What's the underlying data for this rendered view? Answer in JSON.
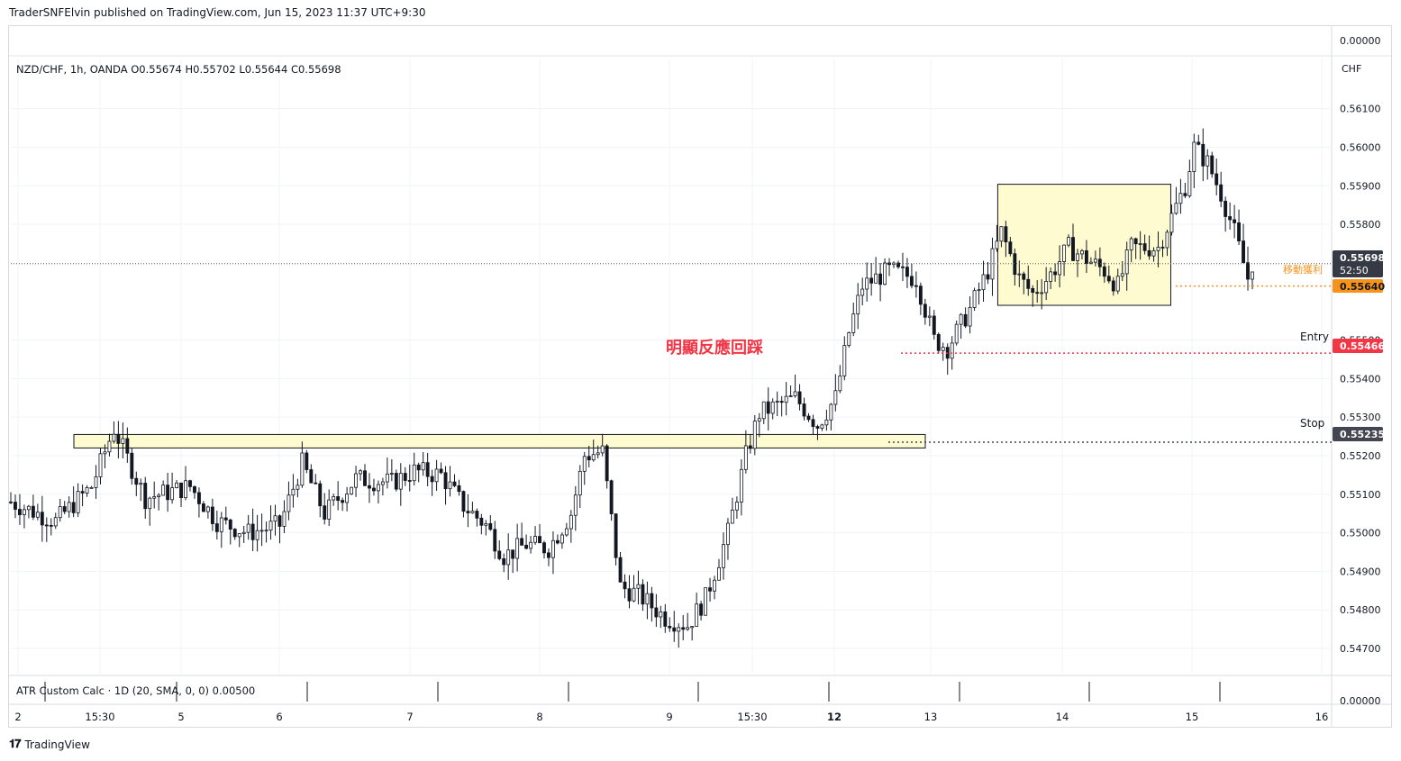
{
  "header": {
    "publisher": "TraderSNFElvin published on TradingView.com, Jun 15, 2023 11:37 UTC+9:30"
  },
  "footer": {
    "brand": "TradingView"
  },
  "chart_data": {
    "type": "candlestick",
    "symbol_line": "NZD/CHF, 1h, OANDA  O0.55674  H0.55702  L0.55644  C0.55698",
    "currency": "CHF",
    "indicator_label": "ATR Custom Calc · 1D (20, SMA, 0, 0)  0.00500",
    "indicator_axis": [
      "0.00000",
      "0.00000"
    ],
    "annotation": "明顯反應回踩",
    "ylim": [
      0.5463,
      0.5616
    ],
    "y_ticks": [
      "0.56100",
      "0.56000",
      "0.55900",
      "0.55800",
      "0.55500",
      "0.55400",
      "0.55300",
      "0.55200",
      "0.55100",
      "0.55000",
      "0.54900",
      "0.54800",
      "0.54700"
    ],
    "x_ticks": [
      "2",
      "15:30",
      "5",
      "6",
      "7",
      "8",
      "9",
      "15:30",
      "12",
      "13",
      "14",
      "15",
      "16"
    ],
    "price_labels": {
      "last": {
        "value": "0.55698",
        "countdown": "52:50",
        "color": "#363a45"
      },
      "take_profit": {
        "label": "移動獲利",
        "value": "0.55640",
        "color": "#f7931a"
      },
      "entry": {
        "label": "Entry",
        "value": "0.55466",
        "color": "#f23645"
      },
      "stop": {
        "label": "Stop",
        "value": "0.55235",
        "color": "#434651"
      }
    },
    "zones": [
      {
        "name": "support-zone",
        "x_range": [
          0,
          178
        ],
        "y_range": [
          0.5522,
          0.55255
        ],
        "fill": "#fffbd1"
      },
      {
        "name": "range-zone",
        "x_range": [
          221,
          258
        ],
        "y_range": [
          0.5559,
          0.55904
        ],
        "fill": "#fffbd1"
      }
    ],
    "anchors": [
      {
        "x": 0,
        "y": 0.5508
      },
      {
        "x": 10,
        "y": 0.5503
      },
      {
        "x": 18,
        "y": 0.5512
      },
      {
        "x": 23,
        "y": 0.5527
      },
      {
        "x": 30,
        "y": 0.5509
      },
      {
        "x": 40,
        "y": 0.5512
      },
      {
        "x": 46,
        "y": 0.5503
      },
      {
        "x": 53,
        "y": 0.55
      },
      {
        "x": 60,
        "y": 0.5502
      },
      {
        "x": 65,
        "y": 0.5518
      },
      {
        "x": 70,
        "y": 0.5505
      },
      {
        "x": 77,
        "y": 0.5514
      },
      {
        "x": 85,
        "y": 0.5513
      },
      {
        "x": 90,
        "y": 0.5516
      },
      {
        "x": 96,
        "y": 0.5515
      },
      {
        "x": 101,
        "y": 0.5507
      },
      {
        "x": 106,
        "y": 0.5502
      },
      {
        "x": 110,
        "y": 0.5494
      },
      {
        "x": 115,
        "y": 0.5497
      },
      {
        "x": 120,
        "y": 0.5496
      },
      {
        "x": 125,
        "y": 0.5505
      },
      {
        "x": 128,
        "y": 0.552
      },
      {
        "x": 132,
        "y": 0.5521
      },
      {
        "x": 136,
        "y": 0.5486
      },
      {
        "x": 140,
        "y": 0.5484
      },
      {
        "x": 146,
        "y": 0.5478
      },
      {
        "x": 151,
        "y": 0.5476
      },
      {
        "x": 155,
        "y": 0.5483
      },
      {
        "x": 160,
        "y": 0.55
      },
      {
        "x": 164,
        "y": 0.552
      },
      {
        "x": 167,
        "y": 0.5531
      },
      {
        "x": 171,
        "y": 0.5533
      },
      {
        "x": 175,
        "y": 0.5535
      },
      {
        "x": 180,
        "y": 0.5528
      },
      {
        "x": 184,
        "y": 0.5535
      },
      {
        "x": 187,
        "y": 0.5552
      },
      {
        "x": 190,
        "y": 0.5564
      },
      {
        "x": 196,
        "y": 0.5568
      },
      {
        "x": 202,
        "y": 0.5566
      },
      {
        "x": 206,
        "y": 0.555
      },
      {
        "x": 209,
        "y": 0.5548
      },
      {
        "x": 214,
        "y": 0.5558
      },
      {
        "x": 218,
        "y": 0.5568
      },
      {
        "x": 221,
        "y": 0.5578
      },
      {
        "x": 225,
        "y": 0.5566
      },
      {
        "x": 228,
        "y": 0.5562
      },
      {
        "x": 232,
        "y": 0.5567
      },
      {
        "x": 236,
        "y": 0.5574
      },
      {
        "x": 240,
        "y": 0.5571
      },
      {
        "x": 244,
        "y": 0.5568
      },
      {
        "x": 247,
        "y": 0.5564
      },
      {
        "x": 250,
        "y": 0.5574
      },
      {
        "x": 253,
        "y": 0.5574
      },
      {
        "x": 256,
        "y": 0.5574
      },
      {
        "x": 259,
        "y": 0.5582
      },
      {
        "x": 262,
        "y": 0.559
      },
      {
        "x": 264,
        "y": 0.56
      },
      {
        "x": 267,
        "y": 0.5596
      },
      {
        "x": 270,
        "y": 0.5588
      },
      {
        "x": 273,
        "y": 0.5578
      },
      {
        "x": 276,
        "y": 0.5566
      },
      {
        "x": 277,
        "y": 0.557
      }
    ],
    "colors": {
      "up": "#ffffff",
      "down": "#131722",
      "grid": "#f0f3fa",
      "axis_text": "#131722"
    }
  }
}
